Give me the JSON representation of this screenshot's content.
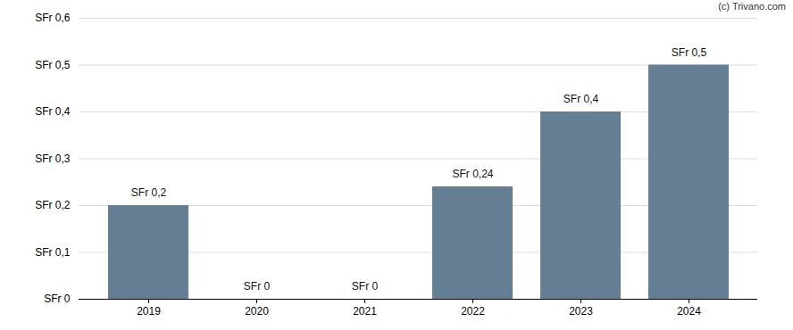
{
  "chart_data": {
    "type": "bar",
    "annotations": [
      "(c) Trivano.com"
    ],
    "categories": [
      "2019",
      "2020",
      "2021",
      "2022",
      "2023",
      "2024"
    ],
    "values": [
      0.2,
      0,
      0,
      0.24,
      0.4,
      0.5
    ],
    "value_labels": [
      "SFr 0,2",
      "SFr 0",
      "SFr 0",
      "SFr 0,24",
      "SFr 0,4",
      "SFr 0,5"
    ],
    "data_labels": true,
    "color": "#647f93",
    "ylim": [
      0,
      0.6
    ],
    "yticks": [
      {
        "value": 0,
        "label": "SFr 0"
      },
      {
        "value": 0.1,
        "label": "SFr 0,1"
      },
      {
        "value": 0.2,
        "label": "SFr 0,2"
      },
      {
        "value": 0.3,
        "label": "SFr 0,3"
      },
      {
        "value": 0.4,
        "label": "SFr 0,4"
      },
      {
        "value": 0.5,
        "label": "SFr 0,5"
      },
      {
        "value": 0.6,
        "label": "SFr 0,6"
      }
    ],
    "grid": true
  }
}
